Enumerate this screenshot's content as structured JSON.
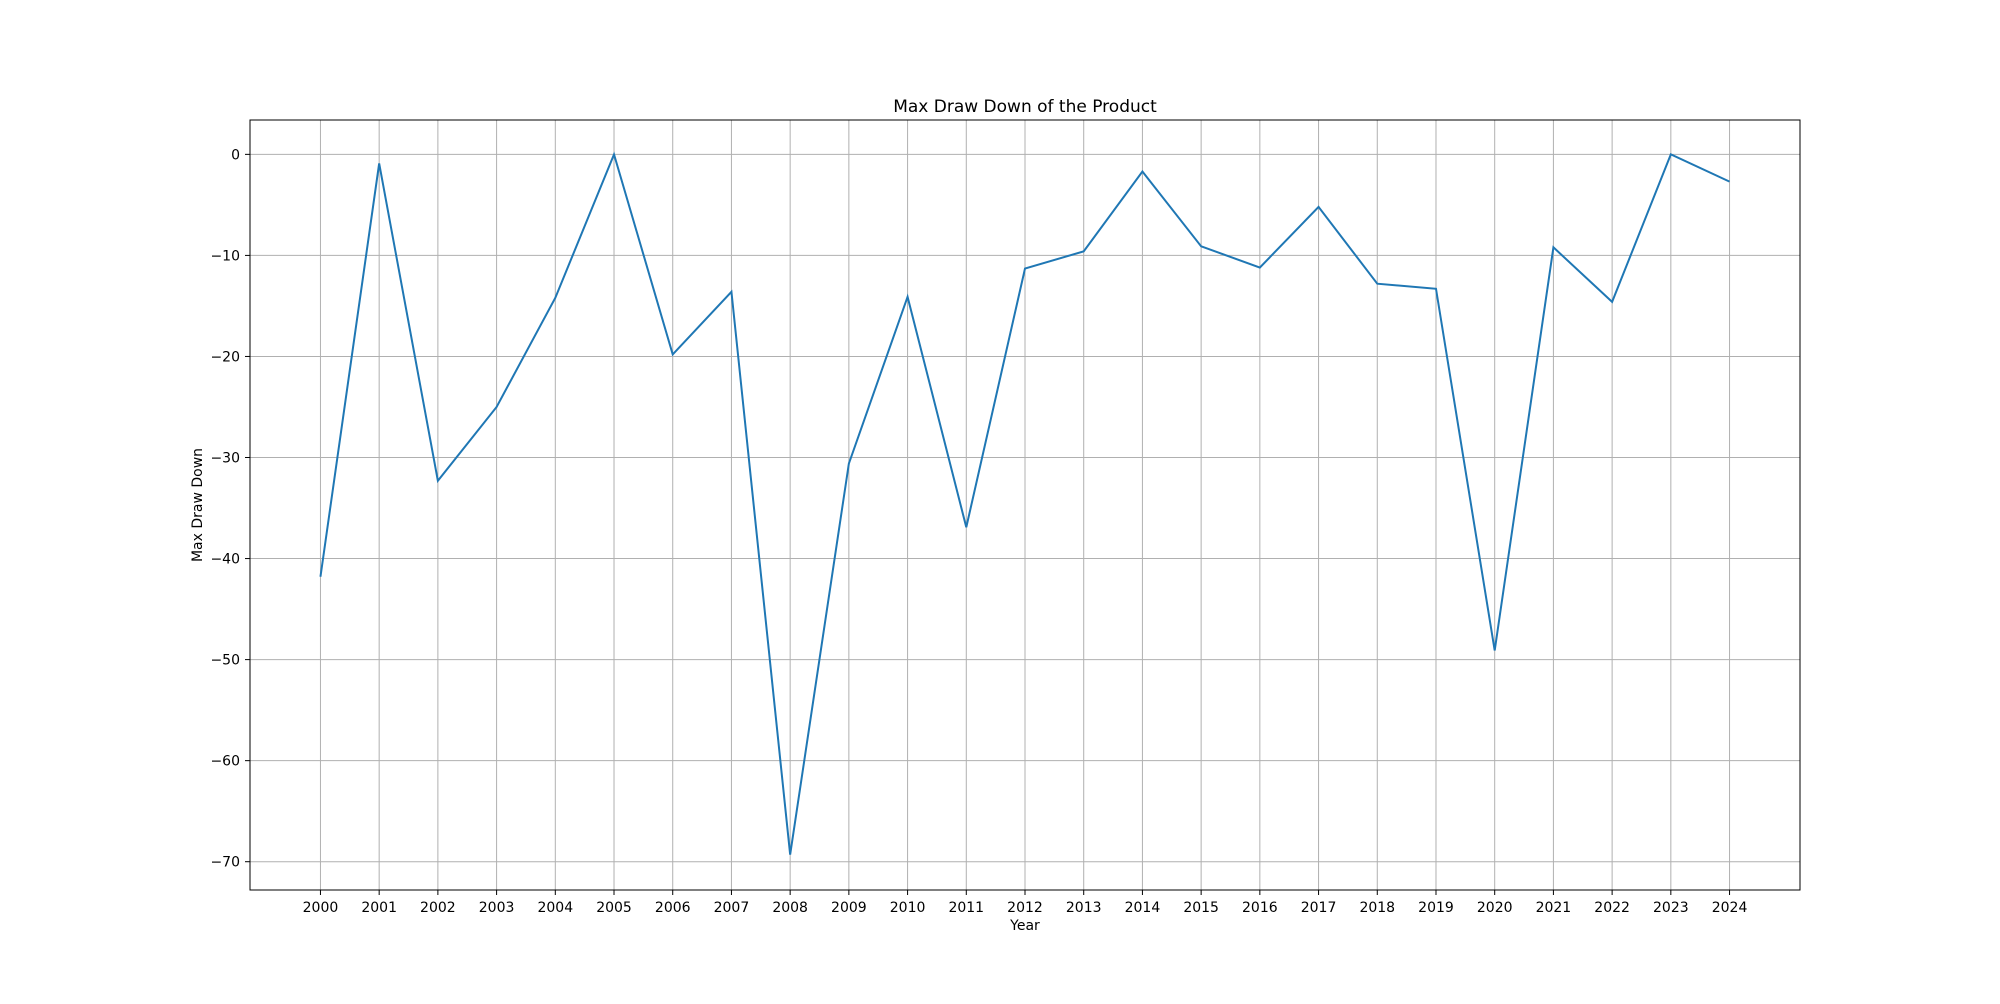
{
  "chart_data": {
    "type": "line",
    "title": "Max Draw Down of the Product",
    "xlabel": "Year",
    "ylabel": "Max Draw Down",
    "grid": true,
    "legend": "none",
    "line_color": "#1f77b4",
    "ylim": [
      -72.8,
      3.4
    ],
    "xlim": [
      1998.8,
      2025.2
    ],
    "x": [
      2000,
      2001,
      2002,
      2003,
      2004,
      2005,
      2006,
      2007,
      2008,
      2009,
      2010,
      2011,
      2012,
      2013,
      2014,
      2015,
      2016,
      2017,
      2018,
      2019,
      2020,
      2021,
      2022,
      2023,
      2024
    ],
    "x_tick_labels": [
      "2000",
      "2001",
      "2002",
      "2003",
      "2004",
      "2005",
      "2006",
      "2007",
      "2008",
      "2009",
      "2010",
      "2011",
      "2012",
      "2013",
      "2014",
      "2015",
      "2016",
      "2017",
      "2018",
      "2019",
      "2020",
      "2021",
      "2022",
      "2023",
      "2024"
    ],
    "y_ticks": [
      0,
      -10,
      -20,
      -30,
      -40,
      -50,
      -60,
      -70
    ],
    "y_tick_labels": [
      "0",
      "−10",
      "−20",
      "−30",
      "−40",
      "−50",
      "−60",
      "−70"
    ],
    "series": [
      {
        "values": [
          -41.8,
          -0.9,
          -32.3,
          -25.0,
          -14.2,
          0.0,
          -19.8,
          -13.6,
          -69.3,
          -30.6,
          -14.1,
          -36.9,
          -11.3,
          -9.6,
          -1.7,
          -9.1,
          -11.2,
          -5.2,
          -12.8,
          -13.3,
          -49.1,
          -9.2,
          -14.6,
          0.0,
          -2.7
        ]
      }
    ]
  }
}
